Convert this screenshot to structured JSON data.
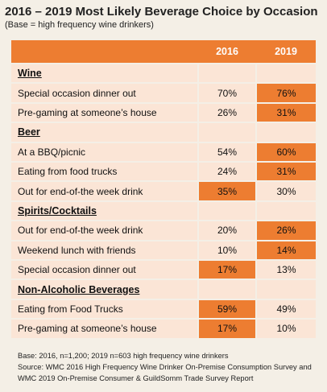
{
  "header": {
    "title": "2016 – 2019 Most Likely Beverage Choice by Occasion",
    "subtitle": "(Base = high frequency wine drinkers)"
  },
  "table": {
    "columns": [
      "2016",
      "2019"
    ],
    "sections": [
      {
        "name": "Wine",
        "rows": [
          {
            "label": "Special occasion dinner out",
            "values": [
              "70%",
              "76%"
            ],
            "highlight": [
              false,
              true
            ]
          },
          {
            "label": "Pre-gaming at someone’s house",
            "values": [
              "26%",
              "31%"
            ],
            "highlight": [
              false,
              true
            ]
          }
        ]
      },
      {
        "name": "Beer",
        "rows": [
          {
            "label": "At a BBQ/picnic",
            "values": [
              "54%",
              "60%"
            ],
            "highlight": [
              false,
              true
            ]
          },
          {
            "label": "Eating from food trucks",
            "values": [
              "24%",
              "31%"
            ],
            "highlight": [
              false,
              true
            ]
          },
          {
            "label": "Out for end-of-the week drink",
            "values": [
              "35%",
              "30%"
            ],
            "highlight": [
              true,
              false
            ]
          }
        ]
      },
      {
        "name": "Spirits/Cocktails",
        "rows": [
          {
            "label": "Out for end-of-the week drink",
            "values": [
              "20%",
              "26%"
            ],
            "highlight": [
              false,
              true
            ]
          },
          {
            "label": "Weekend lunch with friends",
            "values": [
              "10%",
              "14%"
            ],
            "highlight": [
              false,
              true
            ]
          },
          {
            "label": "Special occasion dinner out",
            "values": [
              "17%",
              "13%"
            ],
            "highlight": [
              true,
              false
            ]
          }
        ]
      },
      {
        "name": "Non-Alcoholic Beverages",
        "rows": [
          {
            "label": "Eating from Food Trucks",
            "values": [
              "59%",
              "49%"
            ],
            "highlight": [
              true,
              false
            ]
          },
          {
            "label": "Pre-gaming at someone’s house",
            "values": [
              "17%",
              "10%"
            ],
            "highlight": [
              true,
              false
            ]
          }
        ]
      }
    ]
  },
  "footnote": [
    "Base: 2016, n=1,200; 2019 n=603 high frequency wine drinkers",
    "Source: WMC 2016 High Frequency Wine Drinker On-Premise Consumption Survey and",
    "WMC 2019 On-Premise Consumer & GuildSomm Trade Survey Report"
  ]
}
